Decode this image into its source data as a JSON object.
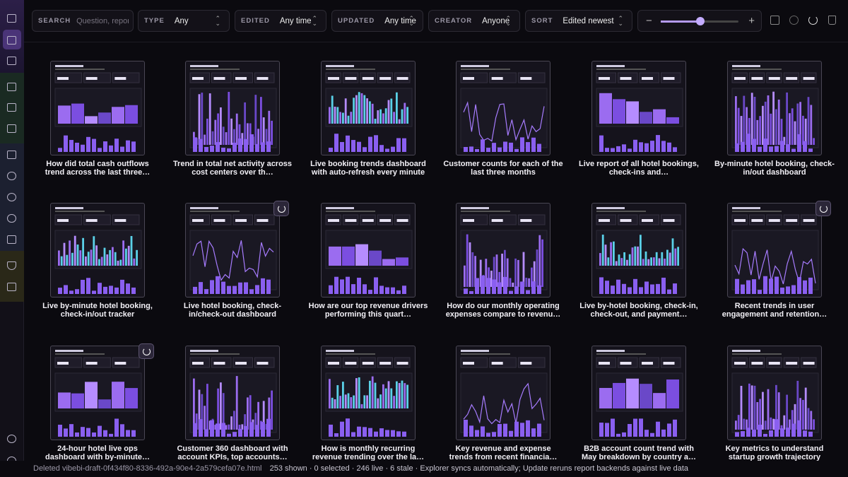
{
  "toolbar": {
    "search": {
      "label": "SEARCH",
      "placeholder": "Question, report"
    },
    "filters": [
      {
        "label": "TYPE",
        "value": "Any"
      },
      {
        "label": "EDITED",
        "value": "Any time"
      },
      {
        "label": "UPDATED",
        "value": "Any time"
      },
      {
        "label": "CREATOR",
        "value": "Anyone"
      },
      {
        "label": "SORT",
        "value": "Edited newest"
      }
    ]
  },
  "reports": [
    {
      "caption": "How did total cash outflows trend across the last three…"
    },
    {
      "caption": "Trend in total net activity across cost centers over th…"
    },
    {
      "caption": "Live booking trends dashboard with auto-refresh every minute"
    },
    {
      "caption": "Customer counts for each of the last three months"
    },
    {
      "caption": "Live report of all hotel bookings, check-ins and…"
    },
    {
      "caption": "By-minute hotel booking, check-in/out dashboard"
    },
    {
      "caption": "Live by-minute hotel booking, check-in/out tracker"
    },
    {
      "caption": "Live hotel booking, check-in/check-out dashboard",
      "badge": true
    },
    {
      "caption": "How are our top revenue drivers performing this quart…"
    },
    {
      "caption": "How do our monthly operating expenses compare to revenu…"
    },
    {
      "caption": "Live by-hotel booking, check-in, check-out, and payment…"
    },
    {
      "caption": "Recent trends in user engagement and retention…",
      "badge": true
    },
    {
      "caption": "24-hour hotel live ops dashboard with by-minute…",
      "badge": true
    },
    {
      "caption": "Customer 360 dashboard with account KPIs, top accounts…"
    },
    {
      "caption": "How is monthly recurring revenue trending over the la…"
    },
    {
      "caption": "Key revenue and expense trends from recent financia…"
    },
    {
      "caption": "B2B account count trend with May breakdown by country a…"
    },
    {
      "caption": "Key metrics to understand startup growth trajectory"
    }
  ],
  "status": {
    "message": "Deleted vibebi-draft-0f434f80-8336-492a-90e4-2a579cefa07e.html",
    "summary": "253 shown · 0 selected · 246 live · 6 stale · Explorer syncs automatically; Update reruns report backends against live data"
  }
}
